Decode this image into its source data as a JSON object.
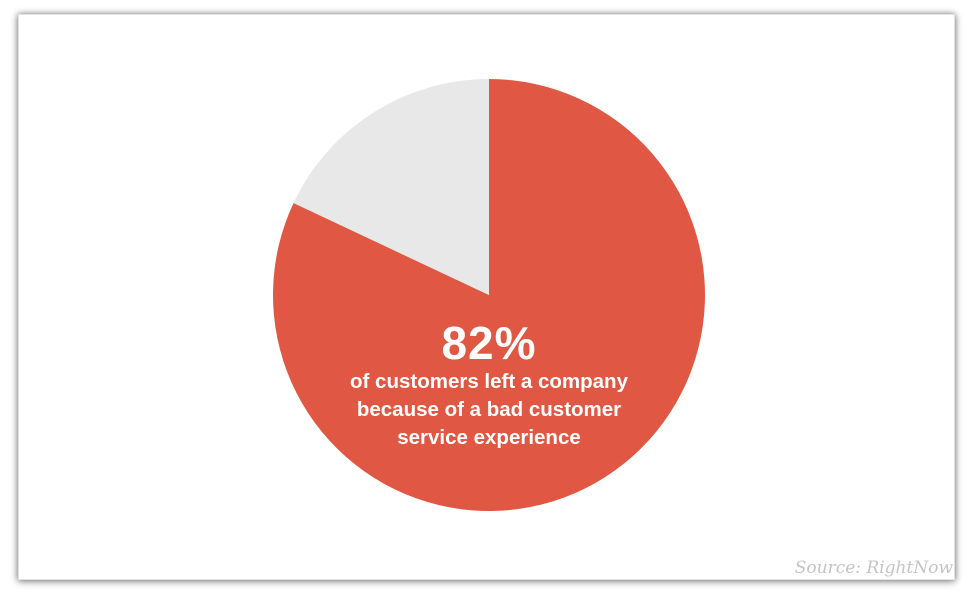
{
  "chart_data": {
    "type": "pie",
    "slices": [
      {
        "value": 82,
        "color": "#e05743"
      },
      {
        "value": 18,
        "color": "#e8e8e8"
      }
    ],
    "start_angle_deg": 0,
    "direction": "clockwise",
    "annotation": {
      "value_label": "82%",
      "lines": [
        "of customers left a company",
        "because of a bad customer",
        "service experience"
      ]
    },
    "source": "Source: RightNow"
  }
}
